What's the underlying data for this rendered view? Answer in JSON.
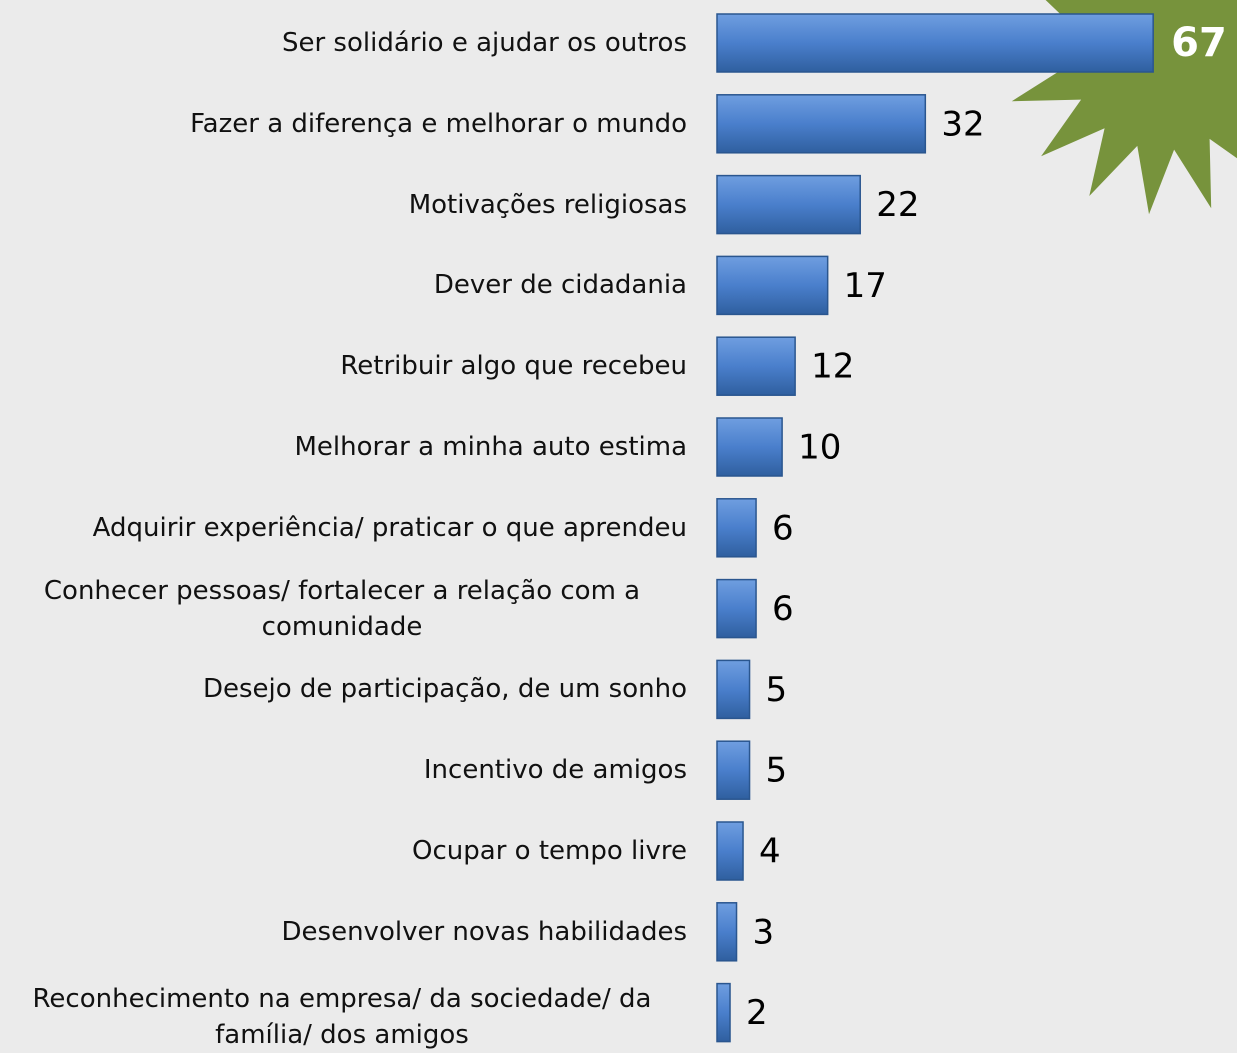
{
  "chart_data": {
    "type": "bar",
    "orientation": "horizontal",
    "categories": [
      "Ser solidário e ajudar os outros",
      "Fazer a diferença e melhorar o mundo",
      "Motivações religiosas",
      "Dever de cidadania",
      "Retribuir algo que recebeu",
      "Melhorar a minha auto estima",
      "Adquirir experiência/ praticar o que aprendeu",
      "Conhecer pessoas/ fortalecer a relação com a comunidade",
      "Desejo de participação, de um sonho",
      "Incentivo de amigos",
      "Ocupar o tempo livre",
      "Desenvolver novas habilidades",
      "Reconhecimento na empresa/ da sociedade/ da família/ dos amigos"
    ],
    "values": [
      67,
      32,
      22,
      17,
      12,
      10,
      6,
      6,
      5,
      5,
      4,
      3,
      2
    ],
    "color": "#4a7fcc",
    "highlight_color": "#77933c"
  }
}
